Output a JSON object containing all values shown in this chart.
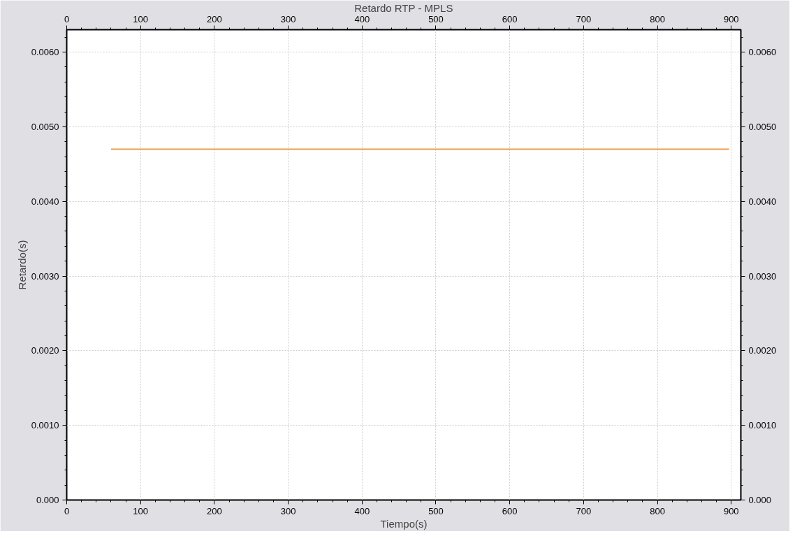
{
  "chart_data": {
    "type": "line",
    "title": "Retardo RTP - MPLS",
    "xlabel": "Tiempo(s)",
    "ylabel": "Retardo(s)",
    "x": [
      60,
      897
    ],
    "series": [
      {
        "color": "#ff9933",
        "values": [
          0.0047,
          0.0047
        ]
      }
    ],
    "xlim": [
      0,
      913
    ],
    "xticks": [
      0,
      100,
      200,
      300,
      400,
      500,
      600,
      700,
      800,
      900
    ],
    "x2lim": [
      0,
      913
    ],
    "x2ticks": [
      0,
      100,
      200,
      300,
      400,
      500,
      600,
      700,
      800,
      900
    ],
    "ylim": [
      0,
      0.0063
    ],
    "yticks": [
      {
        "value": 0,
        "label": "0.000"
      },
      {
        "value": 0.001,
        "label": "0.0010"
      },
      {
        "value": 0.002,
        "label": "0.0020"
      },
      {
        "value": 0.003,
        "label": "0.0030"
      },
      {
        "value": 0.004,
        "label": "0.0040"
      },
      {
        "value": 0.005,
        "label": "0.0050"
      },
      {
        "value": 0.006,
        "label": "0.0060"
      }
    ],
    "y2lim": [
      0,
      0.0063
    ],
    "y2ticks": [
      {
        "value": 0,
        "label": "0.000"
      },
      {
        "value": 0.001,
        "label": "0.0010"
      },
      {
        "value": 0.002,
        "label": "0.0020"
      },
      {
        "value": 0.003,
        "label": "0.0030"
      },
      {
        "value": 0.004,
        "label": "0.0040"
      },
      {
        "value": 0.005,
        "label": "0.0050"
      },
      {
        "value": 0.006,
        "label": "0.0060"
      }
    ],
    "grid": true,
    "marker": "none",
    "line_style": "solid"
  }
}
